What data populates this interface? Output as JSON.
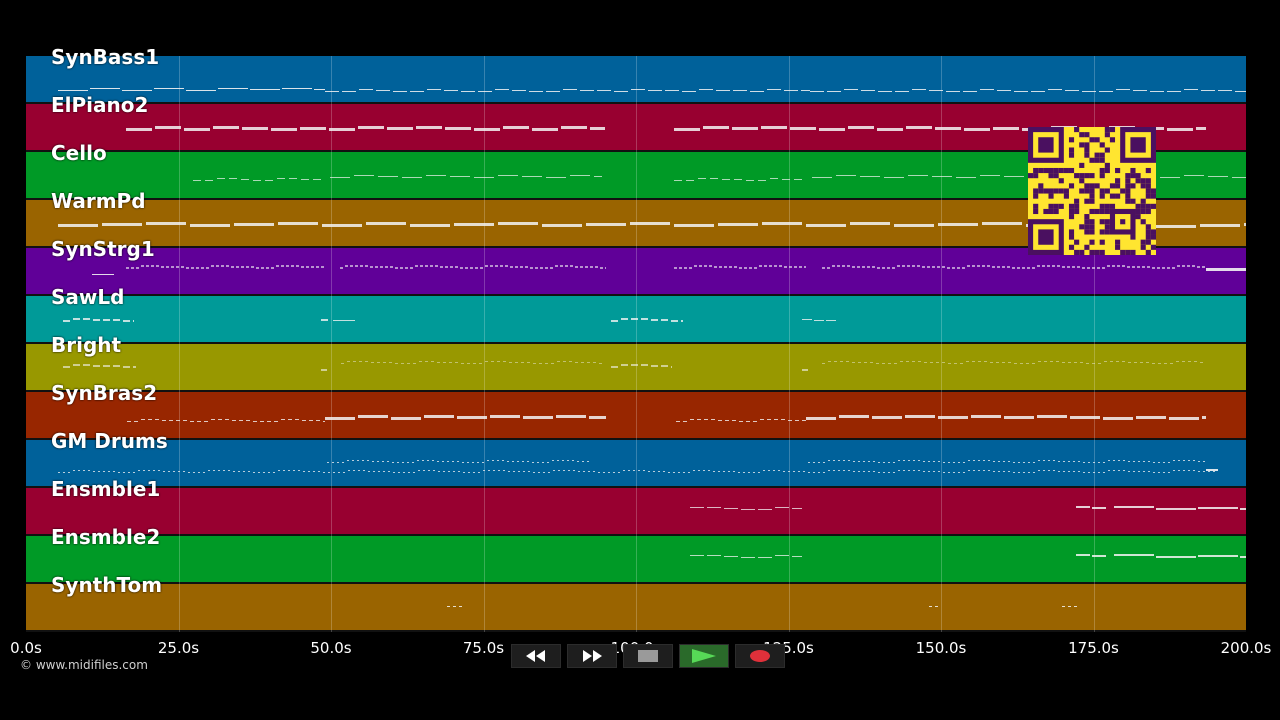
{
  "tracks": [
    {
      "name": "SynBass1",
      "color": "#00619a"
    },
    {
      "name": "ElPiano2",
      "color": "#980030"
    },
    {
      "name": "Cello",
      "color": "#009a26"
    },
    {
      "name": "WarmPd",
      "color": "#9a6400"
    },
    {
      "name": "SynStrg1",
      "color": "#600098"
    },
    {
      "name": "SawLd",
      "color": "#009a98"
    },
    {
      "name": "Bright",
      "color": "#989800"
    },
    {
      "name": "SynBras2",
      "color": "#982600"
    },
    {
      "name": "GM Drums",
      "color": "#00619a"
    },
    {
      "name": "Ensmble1",
      "color": "#980030"
    },
    {
      "name": "Ensmble2",
      "color": "#009a26"
    },
    {
      "name": "SynthTom",
      "color": "#9a6400"
    }
  ],
  "timeline": {
    "ticks": [
      "0.0s",
      "25.0s",
      "50.0s",
      "75.0s",
      "100.0s",
      "125.0s",
      "150.0s",
      "175.0s",
      "200.0s"
    ]
  },
  "copyright": "© www.midifiles.com",
  "transport": [
    {
      "name": "rewind-icon",
      "color": "#ffffff"
    },
    {
      "name": "fast-forward-icon",
      "color": "#ffffff"
    },
    {
      "name": "stop-icon",
      "color": "#9a9a9a"
    },
    {
      "name": "play-icon",
      "color": "#4ec94e"
    },
    {
      "name": "record-icon",
      "color": "#e0303a"
    }
  ],
  "qr_colors": {
    "background": "#ffe530",
    "modules": "#4a1060"
  }
}
